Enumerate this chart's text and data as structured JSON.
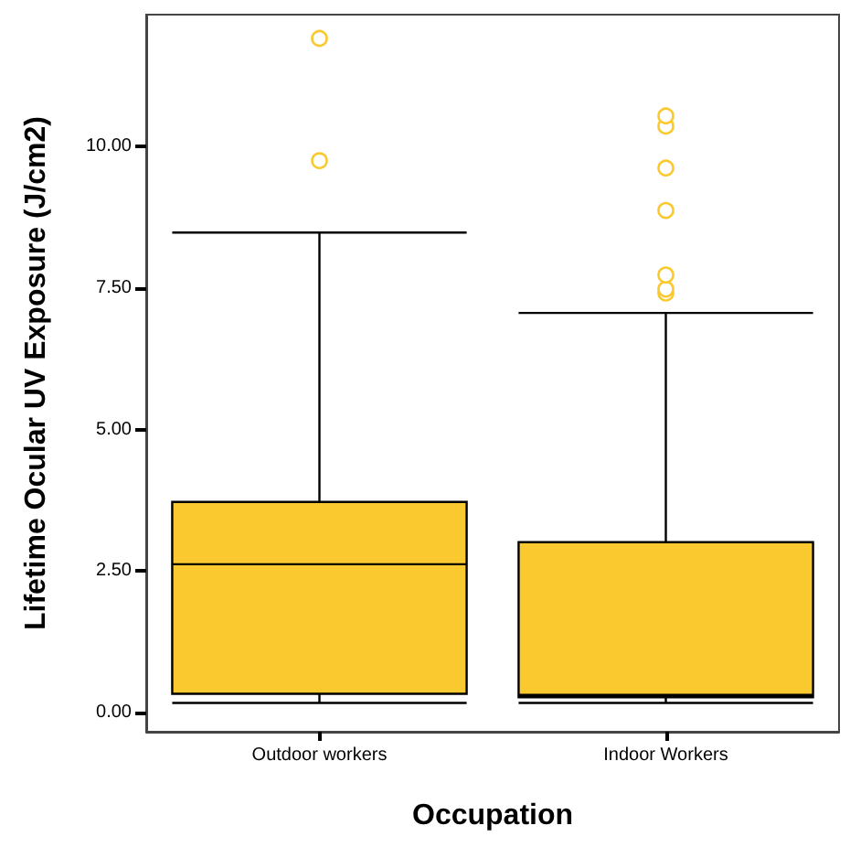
{
  "chart_data": {
    "type": "box",
    "xlabel": "Occupation",
    "ylabel": "Lifetime Ocular UV Exposure (J/cm2)",
    "categories": [
      "Outdoor workers",
      "Indoor Workers"
    ],
    "color": "#f9c92f",
    "boxes": [
      {
        "low": 0.17,
        "q1": 0.33,
        "median": 2.62,
        "q3": 3.72,
        "high": 8.48,
        "outliers": [
          9.75,
          11.91
        ]
      },
      {
        "low": 0.17,
        "q1": 0.27,
        "median": 0.31,
        "q3": 3.01,
        "high": 7.06,
        "outliers": [
          7.41,
          7.48,
          7.73,
          8.87,
          9.62,
          10.36,
          10.54
        ]
      }
    ],
    "ylim": [
      -0.34,
      12.33
    ],
    "yticks": [
      {
        "value": 0,
        "label": "0.00"
      },
      {
        "value": 2.5,
        "label": "2.50"
      },
      {
        "value": 5,
        "label": "5.00"
      },
      {
        "value": 7.5,
        "label": "7.50"
      },
      {
        "value": 10,
        "label": "10.00"
      }
    ],
    "grid": false
  }
}
